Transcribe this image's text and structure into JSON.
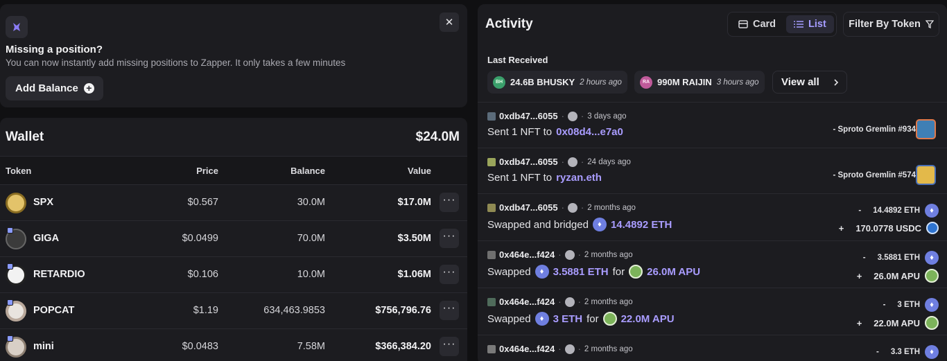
{
  "missing": {
    "title": "Missing a position?",
    "subtitle": "You can now instantly add missing positions to Zapper. It only takes a few minutes",
    "add_label": "Add Balance",
    "close": "✕"
  },
  "wallet": {
    "title": "Wallet",
    "total": "$24.0M",
    "columns": {
      "token": "Token",
      "price": "Price",
      "balance": "Balance",
      "value": "Value"
    },
    "rows": [
      {
        "symbol": "SPX",
        "price": "$0.567",
        "balance": "30.0M",
        "value": "$17.0M"
      },
      {
        "symbol": "GIGA",
        "price": "$0.0499",
        "balance": "70.0M",
        "value": "$3.50M"
      },
      {
        "symbol": "RETARDIO",
        "price": "$0.106",
        "balance": "10.0M",
        "value": "$1.06M"
      },
      {
        "symbol": "POPCAT",
        "price": "$1.19",
        "balance": "634,463.9853",
        "value": "$756,796.76"
      },
      {
        "symbol": "mini",
        "price": "$0.0483",
        "balance": "7.58M",
        "value": "$366,384.20"
      }
    ],
    "more": "···"
  },
  "activity": {
    "title": "Activity",
    "card_label": "Card",
    "list_label": "List",
    "filter_label": "Filter By Token",
    "last_received": "Last Received",
    "chips": [
      {
        "icon": "BH",
        "text": "24.6B BHUSKY",
        "time": "2 hours ago",
        "color": "#3a9f6b"
      },
      {
        "icon": "RA",
        "text": "990M RAIJIN",
        "time": "3 hours ago",
        "color": "#c05a9a"
      }
    ],
    "view_all": "View all",
    "items": [
      {
        "addr": "0xdb47...6055",
        "time": "3 days ago",
        "verb": "Sent 1 NFT to",
        "target": "0x08d4...e7a0",
        "nft": "- Sproto Gremlin #934"
      },
      {
        "addr": "0xdb47...6055",
        "time": "24 days ago",
        "verb": "Sent 1 NFT to",
        "target": "ryzan.eth",
        "nft": "- Sproto Gremlin #574"
      },
      {
        "addr": "0xdb47...6055",
        "time": "2 months ago",
        "verb": "Swapped and bridged",
        "target": "14.4892 ETH",
        "out": "14.4892 ETH",
        "in": "170.0778 USDC"
      },
      {
        "addr": "0x464e...f424",
        "time": "2 months ago",
        "verb": "Swapped",
        "target": "3.5881 ETH",
        "for": "for",
        "target2": "26.0M APU",
        "out": "3.5881 ETH",
        "in": "26.0M APU"
      },
      {
        "addr": "0x464e...f424",
        "time": "2 months ago",
        "verb": "Swapped",
        "target": "3 ETH",
        "for": "for",
        "target2": "22.0M APU",
        "out": "3 ETH",
        "in": "22.0M APU"
      },
      {
        "addr": "0x464e...f424",
        "time": "2 months ago",
        "out": "3.3 ETH"
      }
    ],
    "minus": "-",
    "plus": "+",
    "sep": "·"
  }
}
